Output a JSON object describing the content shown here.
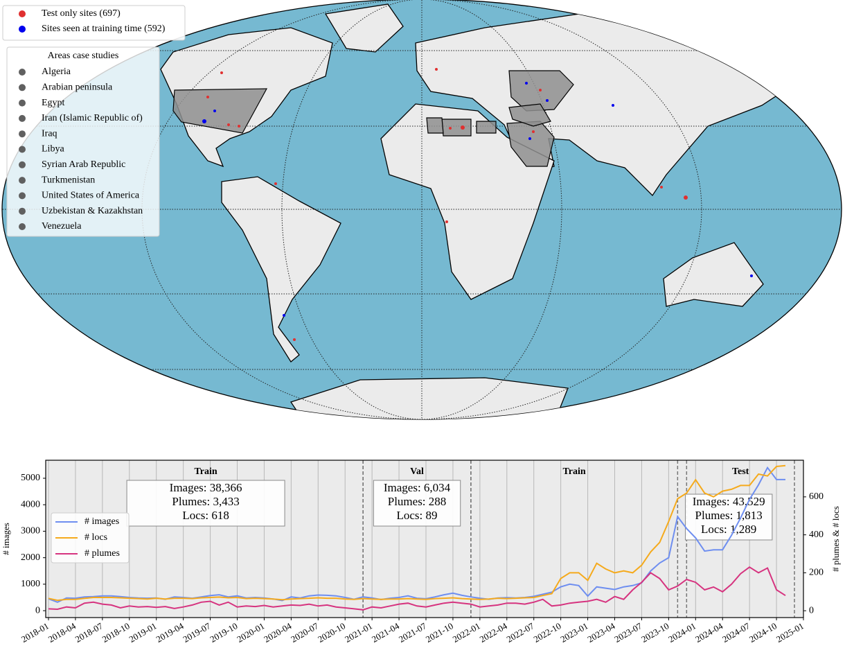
{
  "map": {
    "legend": [
      {
        "label": "Test only sites (697)",
        "color": "#e03030"
      },
      {
        "label": "Sites seen at training time (592)",
        "color": "#0000ee"
      }
    ],
    "areas_title": "Areas case studies",
    "areas": [
      "Algeria",
      "Arabian peninsula",
      "Egypt",
      "Iran (Islamic Republic of)",
      "Iraq",
      "Libya",
      "Syrian Arab Republic",
      "Turkmenistan",
      "United States of America",
      "Uzbekistan & Kazakhstan",
      "Venezuela"
    ]
  },
  "chart_data": {
    "type": "line",
    "x": [
      "2018-01",
      "2018-02",
      "2018-03",
      "2018-04",
      "2018-05",
      "2018-06",
      "2018-07",
      "2018-08",
      "2018-09",
      "2018-10",
      "2018-11",
      "2018-12",
      "2019-01",
      "2019-02",
      "2019-03",
      "2019-04",
      "2019-05",
      "2019-06",
      "2019-07",
      "2019-08",
      "2019-09",
      "2019-10",
      "2019-11",
      "2019-12",
      "2020-01",
      "2020-02",
      "2020-03",
      "2020-04",
      "2020-05",
      "2020-06",
      "2020-07",
      "2020-08",
      "2020-09",
      "2020-10",
      "2020-11",
      "2020-12",
      "2021-01",
      "2021-02",
      "2021-03",
      "2021-04",
      "2021-05",
      "2021-06",
      "2021-07",
      "2021-08",
      "2021-09",
      "2021-10",
      "2021-11",
      "2021-12",
      "2022-01",
      "2022-02",
      "2022-03",
      "2022-04",
      "2022-05",
      "2022-06",
      "2022-07",
      "2022-08",
      "2022-09",
      "2022-10",
      "2022-11",
      "2022-12",
      "2023-01",
      "2023-02",
      "2023-03",
      "2023-04",
      "2023-05",
      "2023-06",
      "2023-07",
      "2023-08",
      "2023-09",
      "2023-10",
      "2023-11",
      "2023-12",
      "2024-01",
      "2024-02",
      "2024-03",
      "2024-04",
      "2024-05",
      "2024-06",
      "2024-07",
      "2024-08",
      "2024-09",
      "2024-10",
      "2024-11"
    ],
    "series": [
      {
        "name": "# images",
        "color": "#6e8ef0",
        "values": [
          450,
          320,
          480,
          470,
          520,
          530,
          560,
          560,
          530,
          500,
          480,
          470,
          480,
          430,
          520,
          500,
          470,
          520,
          570,
          600,
          520,
          560,
          480,
          500,
          480,
          440,
          380,
          520,
          480,
          560,
          590,
          580,
          560,
          500,
          430,
          520,
          480,
          420,
          470,
          500,
          560,
          470,
          450,
          520,
          600,
          660,
          580,
          520,
          470,
          430,
          480,
          490,
          480,
          500,
          540,
          620,
          700,
          900,
          1000,
          950,
          550,
          900,
          850,
          800,
          900,
          950,
          1050,
          1500,
          1800,
          2000,
          3550,
          3100,
          2750,
          2250,
          2300,
          2300,
          2850,
          3500,
          4200,
          4750,
          5400,
          4950,
          4950
        ]
      },
      {
        "name": "# locs",
        "color": "#f5aa1c",
        "axis": "y2",
        "values": [
          65,
          55,
          60,
          60,
          65,
          70,
          70,
          70,
          68,
          66,
          64,
          62,
          66,
          62,
          66,
          66,
          64,
          68,
          70,
          72,
          68,
          70,
          64,
          66,
          64,
          62,
          58,
          62,
          64,
          66,
          68,
          66,
          66,
          62,
          60,
          64,
          62,
          60,
          62,
          62,
          64,
          62,
          60,
          64,
          66,
          68,
          64,
          62,
          60,
          62,
          66,
          64,
          66,
          68,
          70,
          80,
          90,
          170,
          200,
          200,
          160,
          250,
          220,
          200,
          210,
          200,
          240,
          310,
          360,
          470,
          590,
          620,
          690,
          620,
          600,
          630,
          640,
          660,
          660,
          720,
          710,
          760,
          765
        ]
      },
      {
        "name": "# plumes",
        "color": "#d6337f",
        "axis": "y2",
        "values": [
          10,
          8,
          20,
          15,
          40,
          45,
          35,
          30,
          15,
          25,
          20,
          22,
          18,
          22,
          12,
          20,
          30,
          45,
          50,
          30,
          45,
          20,
          25,
          22,
          28,
          20,
          25,
          30,
          28,
          35,
          25,
          30,
          20,
          15,
          10,
          5,
          20,
          15,
          25,
          35,
          40,
          25,
          20,
          30,
          40,
          45,
          40,
          35,
          20,
          25,
          30,
          40,
          40,
          35,
          45,
          60,
          25,
          30,
          40,
          45,
          50,
          60,
          45,
          75,
          60,
          110,
          150,
          200,
          170,
          110,
          130,
          165,
          150,
          110,
          125,
          100,
          140,
          195,
          230,
          200,
          225,
          110,
          80
        ]
      }
    ],
    "xlim": [
      "2018-01",
      "2025-01"
    ],
    "xticks": [
      "2018-01",
      "2018-04",
      "2018-07",
      "2018-10",
      "2019-01",
      "2019-04",
      "2019-07",
      "2019-10",
      "2020-01",
      "2020-04",
      "2020-07",
      "2020-10",
      "2021-01",
      "2021-04",
      "2021-07",
      "2021-10",
      "2022-01",
      "2022-04",
      "2022-07",
      "2022-10",
      "2023-01",
      "2023-04",
      "2023-07",
      "2023-10",
      "2024-01",
      "2024-04",
      "2024-07",
      "2024-10",
      "2025-01"
    ],
    "ylim": [
      -260,
      5680
    ],
    "yticks": [
      0,
      1000,
      2000,
      3000,
      4000,
      5000
    ],
    "y2lim": [
      -36,
      793
    ],
    "y2ticks": [
      0,
      200,
      400,
      600
    ],
    "ylabel": "# images",
    "y2label": "# plumes & # locs",
    "grid": true,
    "legend": "left",
    "periods": [
      {
        "name": "Train",
        "start": "2018-01",
        "end": "2020-12",
        "stats": [
          "Images: 38,366",
          "Plumes: 3,433",
          "Locs: 618"
        ]
      },
      {
        "name": "Val",
        "start": "2020-12",
        "end": "2021-12",
        "stats": [
          "Images: 6,034",
          "Plumes: 288",
          "Locs: 89"
        ]
      },
      {
        "name": "Train",
        "start": "2021-12",
        "end": "2023-11"
      },
      {
        "name": "Test",
        "start": "2023-12",
        "end": "2024-12",
        "stats": [
          "Images: 43,529",
          "Plumes: 1,813",
          "Locs: 1,289"
        ]
      }
    ]
  }
}
